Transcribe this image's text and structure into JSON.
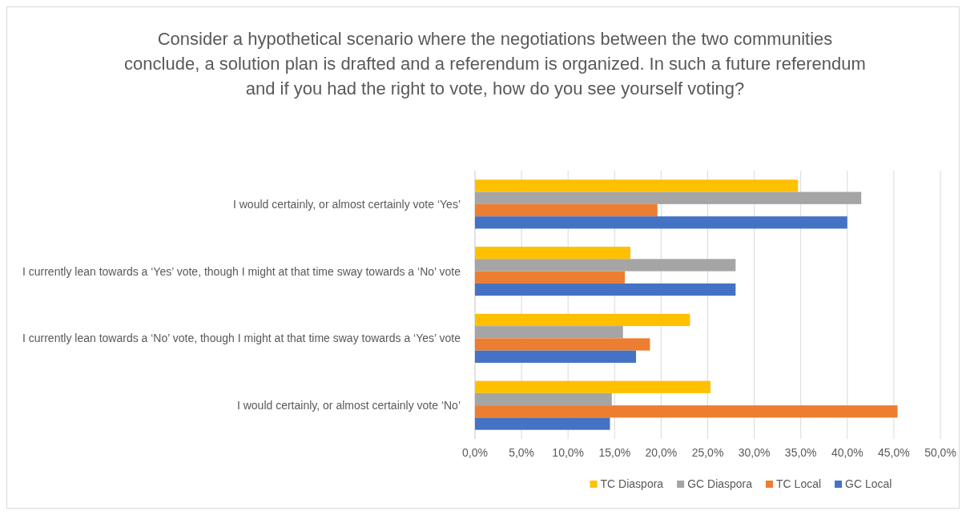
{
  "chart_data": {
    "type": "bar",
    "orientation": "horizontal",
    "title": "Consider a hypothetical scenario where the negotiations between the two communities conclude, a solution plan is drafted and a referendum is organized. In such a future referendum and if you had the right to vote, how do you see yourself voting?",
    "categories": [
      "I would certainly, or almost certainly vote ‘Yes’",
      "I currently lean towards a ‘Yes’ vote, though I might at that time sway towards a ‘No’ vote",
      "I currently lean towards a ‘No’ vote, though I might at that time sway towards a ‘Yes’ vote",
      "I would certainly, or almost certainly vote ‘No’"
    ],
    "series": [
      {
        "name": "TC Diaspora",
        "color": "#ffc000",
        "values": [
          34.7,
          16.7,
          23.1,
          25.3
        ]
      },
      {
        "name": "GC Diaspora",
        "color": "#a5a5a5",
        "values": [
          41.5,
          28.0,
          15.9,
          14.7
        ]
      },
      {
        "name": "TC Local",
        "color": "#ed7d31",
        "values": [
          19.6,
          16.1,
          18.8,
          45.4
        ]
      },
      {
        "name": "GC Local",
        "color": "#4472c4",
        "values": [
          40.0,
          28.0,
          17.3,
          14.5
        ]
      }
    ],
    "xlim": [
      0,
      50
    ],
    "xticks": [
      {
        "value": 0,
        "label": "0,0%"
      },
      {
        "value": 5,
        "label": "5,0%"
      },
      {
        "value": 10,
        "label": "10,0%"
      },
      {
        "value": 15,
        "label": "15,0%"
      },
      {
        "value": 20,
        "label": "20,0%"
      },
      {
        "value": 25,
        "label": "25,0%"
      },
      {
        "value": 30,
        "label": "30,0%"
      },
      {
        "value": 35,
        "label": "35,0%"
      },
      {
        "value": 40,
        "label": "40,0%"
      },
      {
        "value": 45,
        "label": "45,0%"
      },
      {
        "value": 50,
        "label": "50,0%"
      }
    ],
    "grid": "x",
    "legend": "bottom"
  }
}
